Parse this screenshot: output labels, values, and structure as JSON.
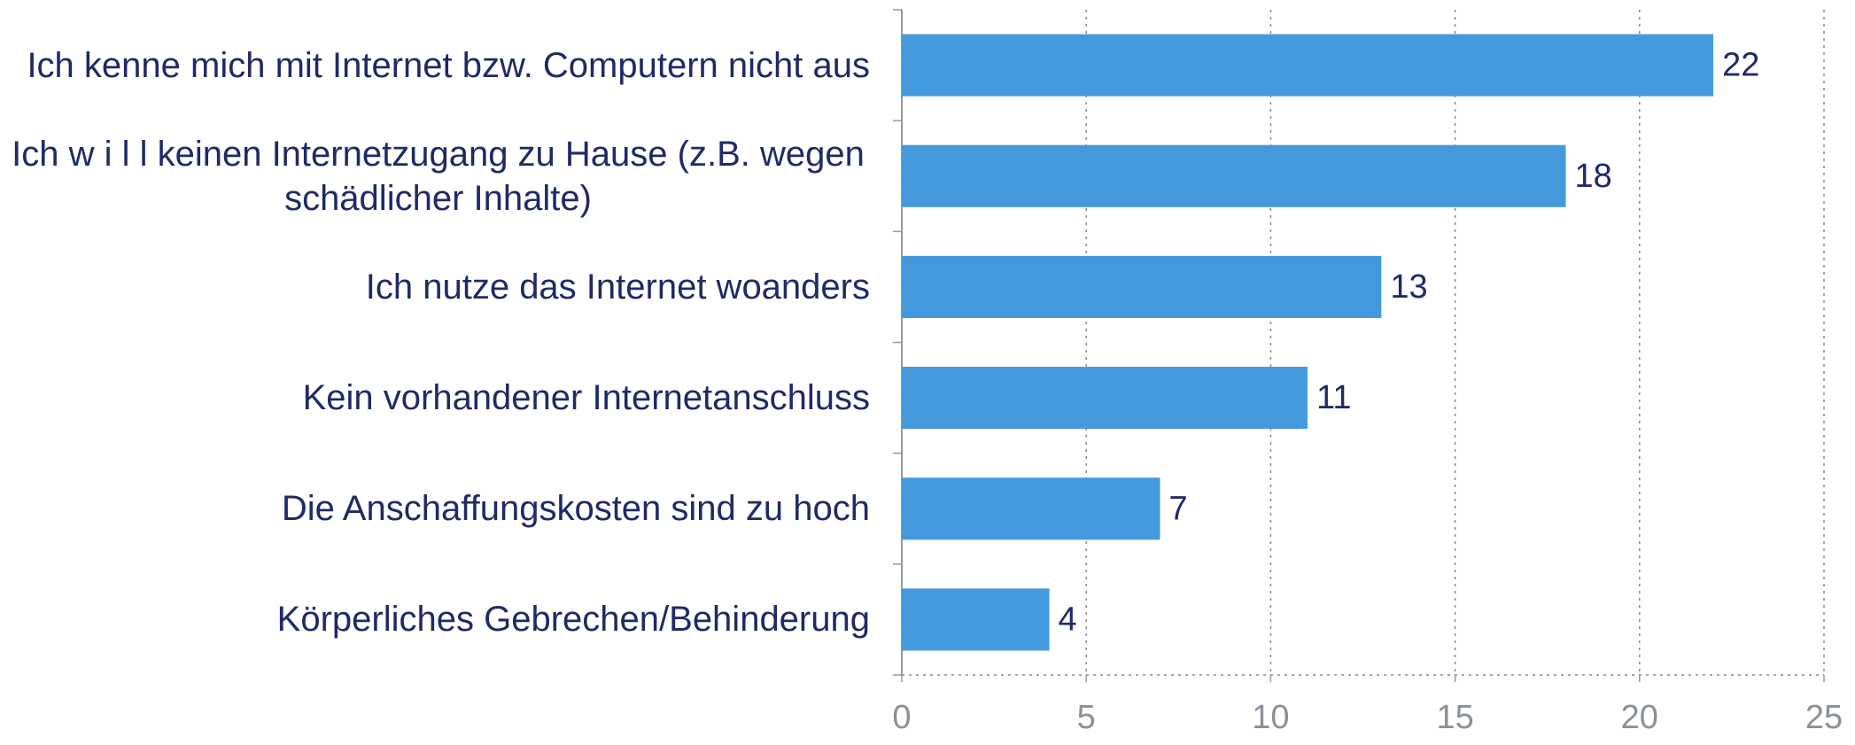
{
  "chart_data": {
    "type": "bar",
    "orientation": "horizontal",
    "categories": [
      "Ich kenne mich mit Internet bzw. Computern nicht aus",
      "Ich w i l l keinen Internetzugang zu Hause (z.B. wegen schädlicher Inhalte)",
      "Ich nutze das Internet woanders",
      "Kein vorhandener Internetanschluss",
      "Die Anschaffungskosten sind zu hoch",
      "Körperliches Gebrechen/Behinderung"
    ],
    "values": [
      22,
      18,
      13,
      11,
      7,
      4
    ],
    "color": "#4499dc",
    "xlim": [
      0,
      25
    ],
    "xticks": [
      0,
      5,
      10,
      15,
      20,
      25
    ],
    "grid": true
  }
}
